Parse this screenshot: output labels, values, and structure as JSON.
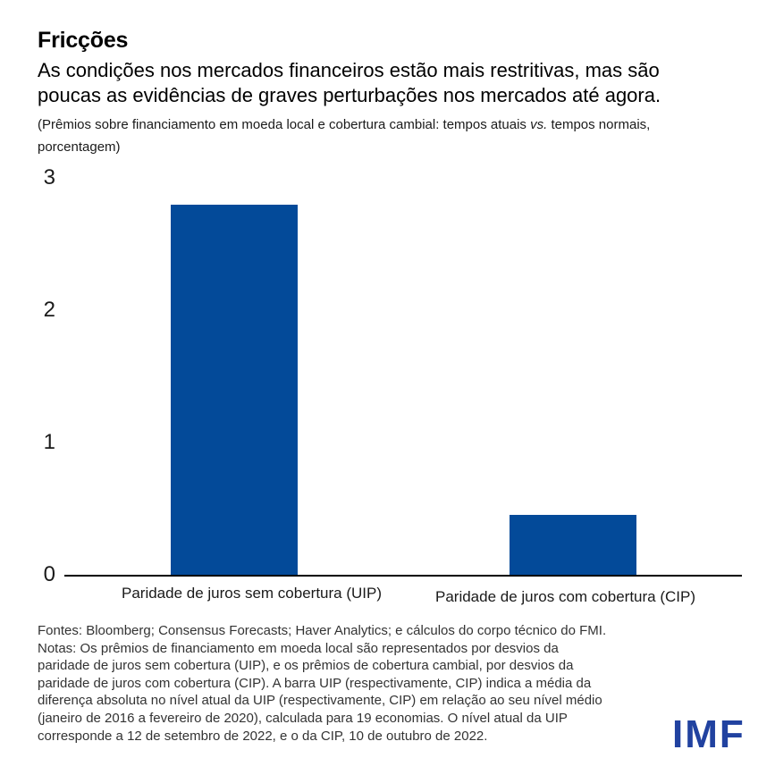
{
  "header": {
    "title": "Fricções",
    "subtitle_lines": [
      "As condições nos mercados financeiros estão mais restritivas, mas são",
      "poucas as evidências de graves perturbações nos mercados até agora."
    ],
    "unit_note": {
      "prefix": "(Prêmios sobre financiamento em moeda local e cobertura cambial: tempos atuais ",
      "vs": "vs.",
      "line1_suffix": " tempos normais,",
      "line2": "porcentagem)"
    }
  },
  "chart_data": {
    "type": "bar",
    "title": "Fricções",
    "categories": [
      "Paridade de juros sem cobertura (UIP)",
      "Paridade de juros com cobertura (CIP)"
    ],
    "values": [
      2.8,
      0.45
    ],
    "ylim": [
      0,
      3
    ],
    "yticks": [
      0,
      1,
      2,
      3
    ],
    "xlabel": "",
    "ylabel": "",
    "unit": "porcentagem",
    "bar_color": "#034A99",
    "axis_color": "#000000",
    "grid": false,
    "legend": "none"
  },
  "footer": {
    "source_notes": [
      "Fontes: Bloomberg; Consensus Forecasts; Haver Analytics; e cálculos do corpo técnico do FMI.",
      "Notas: Os prêmios de financiamento em moeda local são representados por desvios da",
      "paridade de juros sem cobertura (UIP), e os prêmios de cobertura cambial, por desvios da",
      "paridade de juros com cobertura (CIP). A barra UIP (respectivamente, CIP) indica a média da",
      "diferença absoluta no nível atual da UIP (respectivamente, CIP) em relação ao seu nível médio",
      "(janeiro de 2016 a fevereiro de 2020), calculada para 19 economias. O nível atual da UIP",
      "corresponde a 12 de setembro de 2022, e o da CIP, 10 de outubro de 2022."
    ],
    "logo_text": "IMF",
    "logo_color": "#2142A0"
  }
}
